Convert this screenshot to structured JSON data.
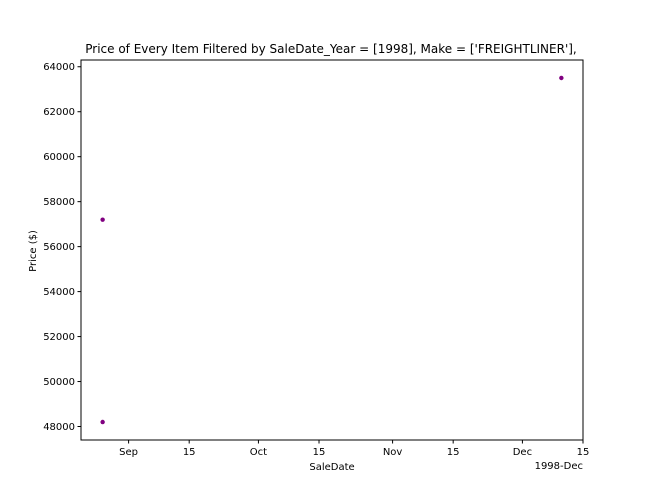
{
  "chart_data": {
    "type": "scatter",
    "title": "Price of Every Item Filtered by SaleDate_Year = [1998], Make = ['FREIGHTLINER'],",
    "xlabel": "SaleDate",
    "ylabel": "Price ($)",
    "x_offset_label": "1998-Dec",
    "xlim": [
      "1998-08-21",
      "1998-12-15"
    ],
    "ylim": [
      47400,
      64300
    ],
    "x_ticks": [
      {
        "date": "1998-09-01",
        "label": "Sep"
      },
      {
        "date": "1998-09-15",
        "label": "15"
      },
      {
        "date": "1998-10-01",
        "label": "Oct"
      },
      {
        "date": "1998-10-15",
        "label": "15"
      },
      {
        "date": "1998-11-01",
        "label": "Nov"
      },
      {
        "date": "1998-11-15",
        "label": "15"
      },
      {
        "date": "1998-12-01",
        "label": "Dec"
      },
      {
        "date": "1998-12-15",
        "label": "15"
      }
    ],
    "y_ticks": [
      48000,
      50000,
      52000,
      54000,
      56000,
      58000,
      60000,
      62000,
      64000
    ],
    "marker_color": "#800080",
    "grid": false,
    "points": [
      {
        "x": "1998-08-26",
        "y": 57200
      },
      {
        "x": "1998-08-26",
        "y": 48200
      },
      {
        "x": "1998-12-10",
        "y": 63500
      }
    ]
  }
}
